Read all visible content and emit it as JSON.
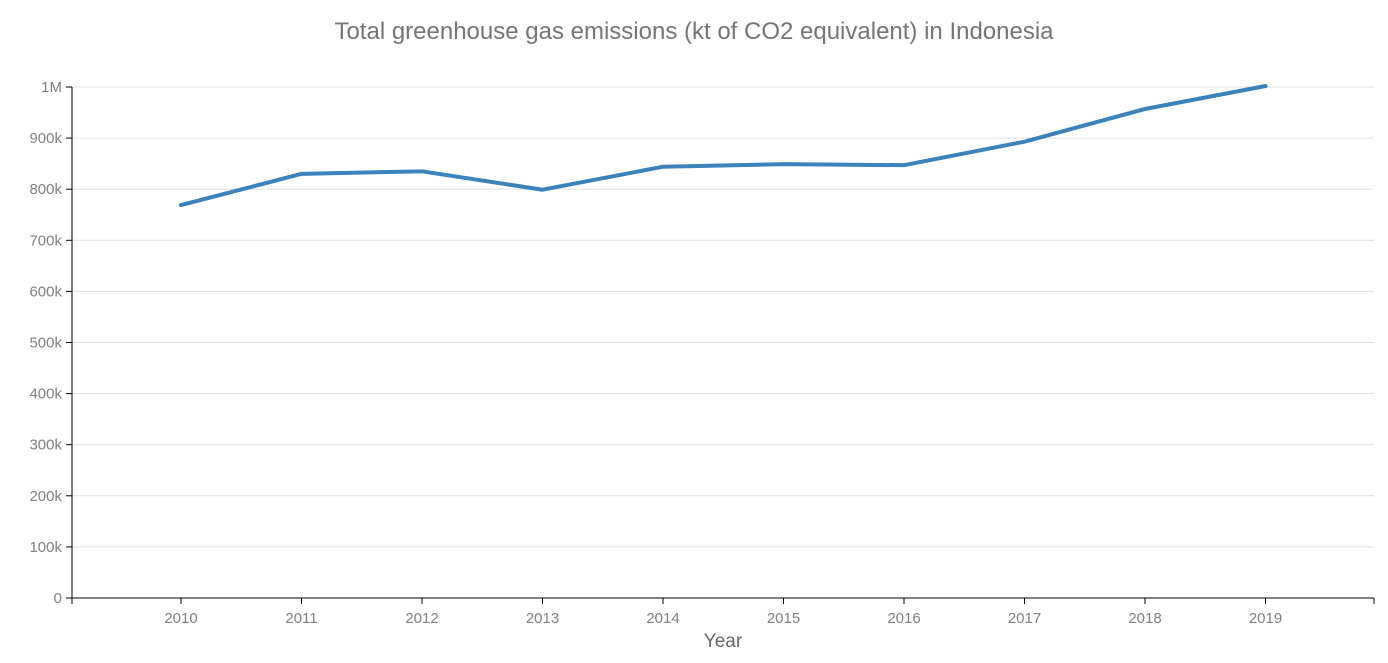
{
  "chart_data": {
    "type": "line",
    "title": "Total greenhouse gas emissions (kt of CO2 equivalent) in Indonesia",
    "xlabel": "Year",
    "ylabel": "",
    "x": [
      2010,
      2011,
      2012,
      2013,
      2014,
      2015,
      2016,
      2017,
      2018,
      2019
    ],
    "series": [
      {
        "values": [
          769000,
          830000,
          835000,
          799000,
          844000,
          849000,
          847000,
          893000,
          957000,
          1002000
        ],
        "color": "#3a82b9"
      }
    ],
    "ylim": [
      0,
      1000000
    ],
    "y_ticks": [
      {
        "value": 0,
        "label": "0"
      },
      {
        "value": 100000,
        "label": "100k"
      },
      {
        "value": 200000,
        "label": "200k"
      },
      {
        "value": 300000,
        "label": "300k"
      },
      {
        "value": 400000,
        "label": "400k"
      },
      {
        "value": 500000,
        "label": "500k"
      },
      {
        "value": 600000,
        "label": "600k"
      },
      {
        "value": 700000,
        "label": "700k"
      },
      {
        "value": 800000,
        "label": "800k"
      },
      {
        "value": 900000,
        "label": "900k"
      },
      {
        "value": 1000000,
        "label": "1M"
      }
    ],
    "x_ticks": [
      "2010",
      "2011",
      "2012",
      "2013",
      "2014",
      "2015",
      "2016",
      "2017",
      "2018",
      "2019"
    ],
    "grid": true,
    "legend": "none",
    "colors": {
      "line": "#3a82b9",
      "grid": "#e0e0e0",
      "axis": "#000000",
      "tick_text": "#808080",
      "title_text": "#757575"
    }
  }
}
